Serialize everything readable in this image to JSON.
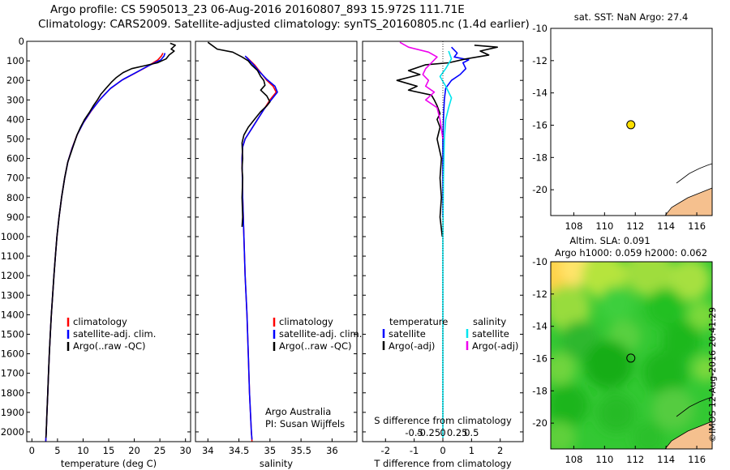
{
  "titles": {
    "line1": "Argo profile: CS 5905013_23 06-Aug-2016 20160807_893 15.972S 111.71E",
    "line2": "Climatology: CARS2009. Satellite-adjusted climatology: synTS_20160805.nc (1.4d earlier)"
  },
  "colors": {
    "climatology": "#ff0000",
    "satellite": "#0000ff",
    "argo": "#000000",
    "s_sat": "#00e5ee",
    "s_argo": "#ee00ee",
    "marker": "#ffe000",
    "land": "#f5c08e"
  },
  "chart_data": [
    {
      "type": "line",
      "name": "temperature-panel",
      "xlabel": "temperature (deg C)",
      "ylabel": "",
      "xlim": [
        -1,
        31
      ],
      "ylim": [
        2050,
        0
      ],
      "xticks": [
        0,
        5,
        10,
        15,
        20,
        25,
        30
      ],
      "yticks": [
        0,
        100,
        200,
        300,
        400,
        500,
        600,
        700,
        800,
        900,
        1000,
        1100,
        1200,
        1300,
        1400,
        1500,
        1600,
        1700,
        1800,
        1900,
        2000
      ],
      "legend": [
        "climatology",
        "satellite-adj. clim.",
        "Argo(..raw -QC)"
      ],
      "series": [
        {
          "name": "climatology",
          "color": "#ff0000",
          "points": [
            [
              25.6,
              60
            ],
            [
              25.3,
              75
            ],
            [
              24.6,
              95
            ],
            [
              22.5,
              130
            ],
            [
              20,
              165
            ],
            [
              17.5,
              200
            ],
            [
              15.2,
              245
            ],
            [
              13.2,
              300
            ],
            [
              11.5,
              360
            ],
            [
              10,
              420
            ],
            [
              8.8,
              480
            ],
            [
              7.8,
              550
            ],
            [
              7,
              620
            ],
            [
              6.4,
              700
            ],
            [
              5.8,
              800
            ],
            [
              5.3,
              900
            ],
            [
              4.9,
              1000
            ],
            [
              4.6,
              1100
            ],
            [
              4.3,
              1200
            ],
            [
              4.05,
              1300
            ],
            [
              3.8,
              1400
            ],
            [
              3.6,
              1500
            ],
            [
              3.4,
              1600
            ],
            [
              3.25,
              1700
            ],
            [
              3.1,
              1800
            ],
            [
              2.95,
              1900
            ],
            [
              2.8,
              2000
            ],
            [
              2.7,
              2050
            ]
          ]
        },
        {
          "name": "satellite-adj. clim.",
          "color": "#0000ff",
          "points": [
            [
              26,
              60
            ],
            [
              25.8,
              75
            ],
            [
              25.2,
              95
            ],
            [
              22.8,
              125
            ],
            [
              20.3,
              160
            ],
            [
              17.8,
              195
            ],
            [
              15.4,
              240
            ],
            [
              13.4,
              295
            ],
            [
              11.6,
              355
            ],
            [
              10.1,
              415
            ],
            [
              8.9,
              475
            ],
            [
              7.9,
              545
            ],
            [
              7.05,
              615
            ],
            [
              6.4,
              700
            ],
            [
              5.8,
              800
            ],
            [
              5.3,
              900
            ],
            [
              4.9,
              1000
            ],
            [
              4.6,
              1100
            ],
            [
              4.3,
              1200
            ],
            [
              4.05,
              1300
            ],
            [
              3.8,
              1400
            ],
            [
              3.6,
              1500
            ],
            [
              3.4,
              1600
            ],
            [
              3.25,
              1700
            ],
            [
              3.1,
              1800
            ],
            [
              2.95,
              1900
            ],
            [
              2.8,
              2000
            ],
            [
              2.7,
              2050
            ]
          ]
        },
        {
          "name": "Argo(..raw -QC)",
          "color": "#000000",
          "points": [
            [
              27,
              10
            ],
            [
              28,
              20
            ],
            [
              27.2,
              40
            ],
            [
              27.8,
              50
            ],
            [
              26.8,
              70
            ],
            [
              26.2,
              90
            ],
            [
              24.5,
              110
            ],
            [
              22,
              125
            ],
            [
              19.5,
              140
            ],
            [
              17.8,
              160
            ],
            [
              16.5,
              185
            ],
            [
              15.5,
              210
            ],
            [
              14.5,
              240
            ],
            [
              13.5,
              270
            ],
            [
              12.8,
              300
            ],
            [
              12,
              330
            ],
            [
              11.2,
              365
            ],
            [
              10.3,
              400
            ],
            [
              9.5,
              440
            ],
            [
              8.8,
              480
            ],
            [
              7.9,
              550
            ],
            [
              7,
              620
            ],
            [
              6.4,
              700
            ],
            [
              5.8,
              800
            ],
            [
              5.3,
              900
            ],
            [
              4.9,
              1000
            ],
            [
              4.6,
              1100
            ],
            [
              4.3,
              1200
            ],
            [
              4.05,
              1300
            ],
            [
              3.8,
              1400
            ],
            [
              3.6,
              1500
            ],
            [
              3.4,
              1600
            ],
            [
              3.25,
              1700
            ],
            [
              3.1,
              1800
            ],
            [
              2.95,
              1900
            ],
            [
              2.8,
              2000
            ],
            [
              2.75,
              2030
            ]
          ]
        }
      ]
    },
    {
      "type": "line",
      "name": "salinity-panel",
      "xlabel": "salinity",
      "xlim": [
        33.8,
        36.4
      ],
      "ylim": [
        2050,
        0
      ],
      "xticks": [
        34,
        34.5,
        35,
        35.5,
        36
      ],
      "legend": [
        "climatology",
        "satellite-adj. clim.",
        "Argo(..raw -QC)"
      ],
      "annotation": [
        "Argo Australia",
        "PI: Susan Wijffels"
      ],
      "series": [
        {
          "name": "climatology",
          "color": "#ff0000",
          "points": [
            [
              34.62,
              80
            ],
            [
              34.75,
              120
            ],
            [
              34.85,
              160
            ],
            [
              34.95,
              200
            ],
            [
              35.05,
              230
            ],
            [
              35.1,
              260
            ],
            [
              35.0,
              300
            ],
            [
              34.9,
              350
            ],
            [
              34.8,
              400
            ],
            [
              34.7,
              450
            ],
            [
              34.6,
              500
            ],
            [
              34.56,
              540
            ],
            [
              34.55,
              600
            ],
            [
              34.56,
              800
            ],
            [
              34.58,
              1000
            ],
            [
              34.6,
              1200
            ],
            [
              34.63,
              1400
            ],
            [
              34.65,
              1600
            ],
            [
              34.67,
              1800
            ],
            [
              34.7,
              2000
            ],
            [
              34.71,
              2050
            ]
          ]
        },
        {
          "name": "satellite-adj. clim.",
          "color": "#0000ff",
          "points": [
            [
              34.6,
              75
            ],
            [
              34.72,
              115
            ],
            [
              34.83,
              155
            ],
            [
              34.95,
              195
            ],
            [
              35.08,
              230
            ],
            [
              35.12,
              260
            ],
            [
              35.02,
              300
            ],
            [
              34.9,
              350
            ],
            [
              34.8,
              400
            ],
            [
              34.7,
              450
            ],
            [
              34.6,
              500
            ],
            [
              34.56,
              540
            ],
            [
              34.55,
              600
            ],
            [
              34.56,
              800
            ],
            [
              34.58,
              1000
            ],
            [
              34.6,
              1200
            ],
            [
              34.63,
              1400
            ],
            [
              34.65,
              1600
            ],
            [
              34.67,
              1800
            ],
            [
              34.7,
              2000
            ],
            [
              34.71,
              2040
            ]
          ]
        },
        {
          "name": "Argo(..raw -QC)",
          "color": "#000000",
          "points": [
            [
              34.0,
              5
            ],
            [
              34.15,
              40
            ],
            [
              34.4,
              55
            ],
            [
              34.55,
              80
            ],
            [
              34.65,
              100
            ],
            [
              34.7,
              120
            ],
            [
              34.8,
              150
            ],
            [
              34.85,
              180
            ],
            [
              34.9,
              200
            ],
            [
              34.92,
              225
            ],
            [
              34.85,
              250
            ],
            [
              34.95,
              280
            ],
            [
              35.0,
              310
            ],
            [
              34.95,
              330
            ],
            [
              34.85,
              360
            ],
            [
              34.75,
              400
            ],
            [
              34.65,
              440
            ],
            [
              34.58,
              480
            ],
            [
              34.55,
              520
            ],
            [
              34.56,
              600
            ],
            [
              34.55,
              650
            ],
            [
              34.56,
              700
            ],
            [
              34.55,
              800
            ],
            [
              34.56,
              900
            ],
            [
              34.55,
              950
            ]
          ]
        }
      ]
    },
    {
      "type": "line",
      "name": "difference-panel",
      "xlabel": "T difference from climatology",
      "xlabel_top": "S difference from climatology",
      "xlim": [
        -2.8,
        2.8
      ],
      "ylim": [
        2050,
        0
      ],
      "xticks_T": [
        -2,
        -1,
        0,
        1,
        2
      ],
      "xticks_S": [
        "-0.5",
        "-0.25",
        "0",
        "0.25",
        "0.5"
      ],
      "legend_titles": [
        "temperature",
        "salinity"
      ],
      "legend": [
        "satellite",
        "Argo(-adj)",
        "satellite",
        "Argo(-adj)"
      ],
      "series": [
        {
          "name": "temperature satellite",
          "color": "#0000ff",
          "points": [
            [
              0.3,
              30
            ],
            [
              0.5,
              60
            ],
            [
              0.4,
              80
            ],
            [
              0.9,
              95
            ],
            [
              0.7,
              110
            ],
            [
              0.8,
              140
            ],
            [
              0.6,
              170
            ],
            [
              0.3,
              200
            ],
            [
              0.1,
              240
            ],
            [
              0.05,
              300
            ],
            [
              0.02,
              400
            ],
            [
              0,
              500
            ],
            [
              0,
              900
            ]
          ]
        },
        {
          "name": "temperature Argo(-adj)",
          "color": "#000000",
          "points": [
            [
              1.1,
              20
            ],
            [
              1.9,
              30
            ],
            [
              1.3,
              50
            ],
            [
              1.6,
              70
            ],
            [
              0.8,
              90
            ],
            [
              0.2,
              110
            ],
            [
              -0.6,
              120
            ],
            [
              -1.2,
              150
            ],
            [
              -0.8,
              170
            ],
            [
              -1.6,
              200
            ],
            [
              -0.9,
              230
            ],
            [
              -1.2,
              250
            ],
            [
              -0.4,
              275
            ],
            [
              -0.3,
              300
            ],
            [
              -0.2,
              330
            ],
            [
              -0.1,
              370
            ],
            [
              -0.2,
              400
            ],
            [
              -0.1,
              440
            ],
            [
              -0.2,
              500
            ],
            [
              -0.05,
              600
            ],
            [
              -0.1,
              700
            ],
            [
              -0.05,
              800
            ],
            [
              -0.1,
              900
            ],
            [
              -0.02,
              1000
            ]
          ]
        },
        {
          "name": "salinity satellite",
          "color": "#00e5ee",
          "points": [
            [
              0.2,
              50
            ],
            [
              0.3,
              90
            ],
            [
              0.1,
              140
            ],
            [
              -0.1,
              180
            ],
            [
              0.1,
              230
            ],
            [
              0.3,
              290
            ],
            [
              0.2,
              340
            ],
            [
              0.1,
              400
            ],
            [
              0.05,
              500
            ],
            [
              0.02,
              700
            ],
            [
              0,
              1000
            ],
            [
              0,
              2030
            ]
          ]
        },
        {
          "name": "salinity Argo(-adj)",
          "color": "#ee00ee",
          "points": [
            [
              -1.5,
              5
            ],
            [
              -1.2,
              30
            ],
            [
              -0.5,
              55
            ],
            [
              -0.2,
              80
            ],
            [
              -0.4,
              110
            ],
            [
              -0.6,
              140
            ],
            [
              -0.7,
              170
            ],
            [
              -0.5,
              200
            ],
            [
              -0.6,
              230
            ],
            [
              -0.3,
              260
            ],
            [
              -0.6,
              300
            ],
            [
              -0.2,
              340
            ],
            [
              -0.1,
              400
            ],
            [
              0,
              500
            ]
          ]
        }
      ]
    },
    {
      "type": "scatter",
      "name": "sst-map",
      "title": "sat. SST: NaN Argo: 27.4",
      "xlim": [
        106.5,
        117
      ],
      "ylim": [
        -21.6,
        -10
      ],
      "xticks": [
        108,
        110,
        112,
        114,
        116
      ],
      "yticks": [
        -10,
        -12,
        -14,
        -16,
        -18,
        -20
      ],
      "points": [
        [
          111.71,
          -15.972
        ]
      ]
    },
    {
      "type": "heatmap",
      "name": "sla-map",
      "title_lines": [
        "Altim. SLA: 0.091",
        "Argo h1000: 0.059 h2000: 0.062"
      ],
      "xlim": [
        106.5,
        117
      ],
      "ylim": [
        -21.6,
        -10
      ],
      "xticks": [
        108,
        110,
        112,
        114,
        116
      ],
      "yticks": [
        -10,
        -12,
        -14,
        -16,
        -18,
        -20
      ],
      "points": [
        [
          111.71,
          -15.972
        ]
      ]
    }
  ],
  "footer": {
    "vertical": "©IMOS 12-Aug-2016 20:41:29"
  }
}
